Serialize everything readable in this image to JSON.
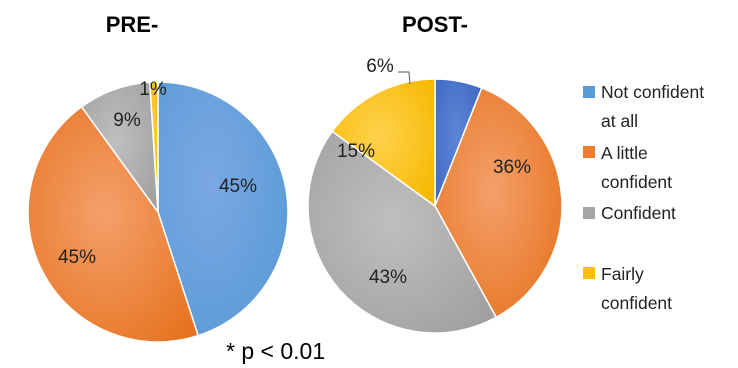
{
  "chart_data": [
    {
      "type": "pie",
      "title": "PRE-",
      "categories": [
        "Not confident at all",
        "A little confident",
        "Confident",
        "Fairly confident"
      ],
      "values": [
        45,
        45,
        9,
        1
      ],
      "data_labels": [
        "45%",
        "45%",
        "9%",
        "1%"
      ],
      "category_order_in_values": [
        "Not confident at all",
        "A little confident",
        "Confident",
        "Fairly confident"
      ]
    },
    {
      "type": "pie",
      "title": "POST-",
      "categories": [
        "Not confident at all",
        "A little confident",
        "Confident",
        "Fairly confident"
      ],
      "values": [
        6,
        36,
        43,
        15
      ],
      "data_labels": [
        "6%",
        "36%",
        "43%",
        "15%"
      ]
    }
  ],
  "legend": {
    "placement": "right",
    "items": [
      {
        "lines": [
          "Not confident",
          "at all"
        ],
        "color": "#4472C4"
      },
      {
        "lines": [
          "A little",
          "confident"
        ],
        "color": "#ED7D31"
      },
      {
        "lines": [
          "Confident"
        ],
        "color": "#A5A5A5"
      },
      {
        "lines": [
          "Fairly",
          "confident"
        ],
        "color": "#FFC000"
      }
    ]
  },
  "annotation": "* p < 0.01",
  "colors": {
    "not_confident": "#4472C4",
    "a_little": "#ED7D31",
    "confident": "#A5A5A5",
    "fairly": "#FFC000"
  }
}
